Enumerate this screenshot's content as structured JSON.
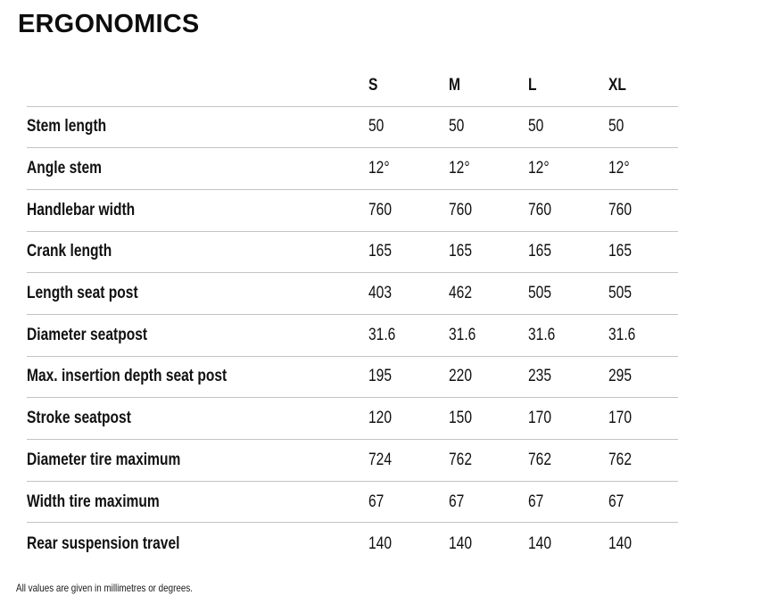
{
  "page": {
    "title": "ERGONOMICS",
    "footnote": "All values are given in millimetres or degrees."
  },
  "chart_data": {
    "type": "table",
    "title": "ERGONOMICS",
    "columns": [
      "S",
      "M",
      "L",
      "XL"
    ],
    "rows": [
      {
        "label": "Stem length",
        "values": [
          "50",
          "50",
          "50",
          "50"
        ]
      },
      {
        "label": "Angle stem",
        "values": [
          "12°",
          "12°",
          "12°",
          "12°"
        ]
      },
      {
        "label": "Handlebar width",
        "values": [
          "760",
          "760",
          "760",
          "760"
        ]
      },
      {
        "label": "Crank length",
        "values": [
          "165",
          "165",
          "165",
          "165"
        ]
      },
      {
        "label": "Length seat post",
        "values": [
          "403",
          "462",
          "505",
          "505"
        ]
      },
      {
        "label": "Diameter seatpost",
        "values": [
          "31.6",
          "31.6",
          "31.6",
          "31.6"
        ]
      },
      {
        "label": "Max. insertion depth seat post",
        "values": [
          "195",
          "220",
          "235",
          "295"
        ]
      },
      {
        "label": "Stroke seatpost",
        "values": [
          "120",
          "150",
          "170",
          "170"
        ]
      },
      {
        "label": "Diameter tire maximum",
        "values": [
          "724",
          "762",
          "762",
          "762"
        ]
      },
      {
        "label": "Width tire maximum",
        "values": [
          "67",
          "67",
          "67",
          "67"
        ]
      },
      {
        "label": "Rear suspension travel",
        "values": [
          "140",
          "140",
          "140",
          "140"
        ]
      }
    ],
    "footnote": "All values are given in millimetres or degrees.",
    "layout": {
      "grid": "horizontal-dividers-only",
      "value_alignment": "left"
    },
    "colors": {
      "text": "#111111",
      "divider": "#c4c4c4",
      "background": "#ffffff"
    }
  }
}
